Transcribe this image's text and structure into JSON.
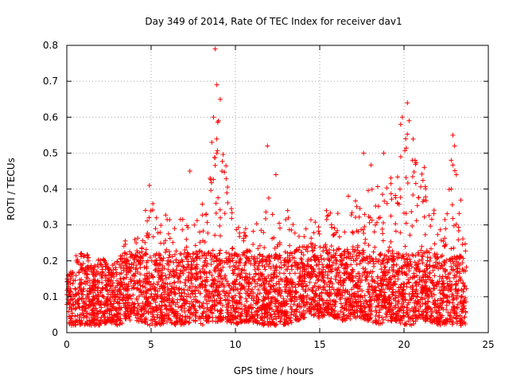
{
  "chart_data": {
    "type": "scatter",
    "title": "Day 349 of 2014, Rate Of TEC Index for receiver dav1",
    "xlabel": "GPS time / hours",
    "ylabel": "ROTI / TECUs",
    "xlim": [
      0,
      25
    ],
    "ylim": [
      0,
      0.8
    ],
    "xticks": [
      0,
      5,
      10,
      15,
      20,
      25
    ],
    "xtick_labels": [
      "0",
      "5",
      "10",
      "15",
      "20",
      "25"
    ],
    "yticks": [
      0,
      0.1,
      0.2,
      0.3,
      0.4,
      0.5,
      0.6,
      0.7,
      0.8
    ],
    "ytick_labels": [
      "0",
      "0.1",
      "0.2",
      "0.3",
      "0.4",
      "0.5",
      "0.6",
      "0.7",
      "0.8"
    ],
    "grid": true,
    "marker": "+",
    "series_color": "#ff0000",
    "series": [
      {
        "name": "ROTI",
        "description": "dense cloud of samples from 0 to ~23.7 h, mostly 0.02-0.25 TECU with scattered spikes",
        "envelope": {
          "x": [
            0,
            0.5,
            0.8,
            1,
            1.5,
            2,
            2.5,
            3,
            3.5,
            4,
            4.5,
            4.9,
            5.5,
            6,
            6.5,
            7,
            7.5,
            8,
            8.5,
            9,
            9.5,
            10,
            10.5,
            11,
            11.5,
            12,
            12.5,
            13,
            13.5,
            14,
            14.5,
            15,
            15.5,
            16,
            16.5,
            17,
            17.5,
            18,
            18.5,
            19,
            19.5,
            20,
            20.5,
            21,
            21.5,
            22,
            22.5,
            23,
            23.5,
            23.7
          ],
          "upper": [
            0.15,
            0.22,
            0.3,
            0.28,
            0.18,
            0.22,
            0.18,
            0.2,
            0.28,
            0.26,
            0.3,
            0.41,
            0.3,
            0.37,
            0.3,
            0.34,
            0.3,
            0.35,
            0.5,
            0.6,
            0.45,
            0.3,
            0.35,
            0.3,
            0.32,
            0.38,
            0.3,
            0.35,
            0.3,
            0.28,
            0.32,
            0.3,
            0.33,
            0.35,
            0.3,
            0.38,
            0.35,
            0.5,
            0.45,
            0.42,
            0.45,
            0.6,
            0.55,
            0.45,
            0.4,
            0.3,
            0.35,
            0.5,
            0.35,
            0.3
          ],
          "lower": [
            0.02,
            0.02,
            0.02,
            0.02,
            0.02,
            0.02,
            0.03,
            0.02,
            0.03,
            0.03,
            0.03,
            0.02,
            0.02,
            0.03,
            0.02,
            0.02,
            0.03,
            0.02,
            0.03,
            0.03,
            0.03,
            0.02,
            0.03,
            0.03,
            0.02,
            0.02,
            0.02,
            0.02,
            0.03,
            0.04,
            0.05,
            0.04,
            0.05,
            0.04,
            0.03,
            0.04,
            0.04,
            0.03,
            0.02,
            0.03,
            0.03,
            0.02,
            0.02,
            0.03,
            0.03,
            0.02,
            0.02,
            0.02,
            0.02,
            0.02
          ]
        },
        "peaks": [
          {
            "x": 8.8,
            "y": 0.79
          },
          {
            "x": 8.9,
            "y": 0.69
          },
          {
            "x": 9.1,
            "y": 0.65
          },
          {
            "x": 8.7,
            "y": 0.6
          },
          {
            "x": 9.0,
            "y": 0.59
          },
          {
            "x": 8.6,
            "y": 0.53
          },
          {
            "x": 8.9,
            "y": 0.5
          },
          {
            "x": 9.2,
            "y": 0.45
          },
          {
            "x": 8.5,
            "y": 0.43
          },
          {
            "x": 7.3,
            "y": 0.45
          },
          {
            "x": 4.9,
            "y": 0.41
          },
          {
            "x": 11.9,
            "y": 0.52
          },
          {
            "x": 12.4,
            "y": 0.44
          },
          {
            "x": 19.9,
            "y": 0.6
          },
          {
            "x": 19.8,
            "y": 0.58
          },
          {
            "x": 20.2,
            "y": 0.64
          },
          {
            "x": 20.3,
            "y": 0.59
          },
          {
            "x": 20.1,
            "y": 0.54
          },
          {
            "x": 18.8,
            "y": 0.5
          },
          {
            "x": 17.6,
            "y": 0.5
          },
          {
            "x": 20.5,
            "y": 0.48
          },
          {
            "x": 21.2,
            "y": 0.46
          },
          {
            "x": 22.9,
            "y": 0.55
          },
          {
            "x": 23.0,
            "y": 0.52
          },
          {
            "x": 22.8,
            "y": 0.48
          },
          {
            "x": 23.1,
            "y": 0.44
          },
          {
            "x": 16.7,
            "y": 0.38
          },
          {
            "x": 15.4,
            "y": 0.34
          },
          {
            "x": 13.1,
            "y": 0.34
          }
        ]
      }
    ]
  }
}
